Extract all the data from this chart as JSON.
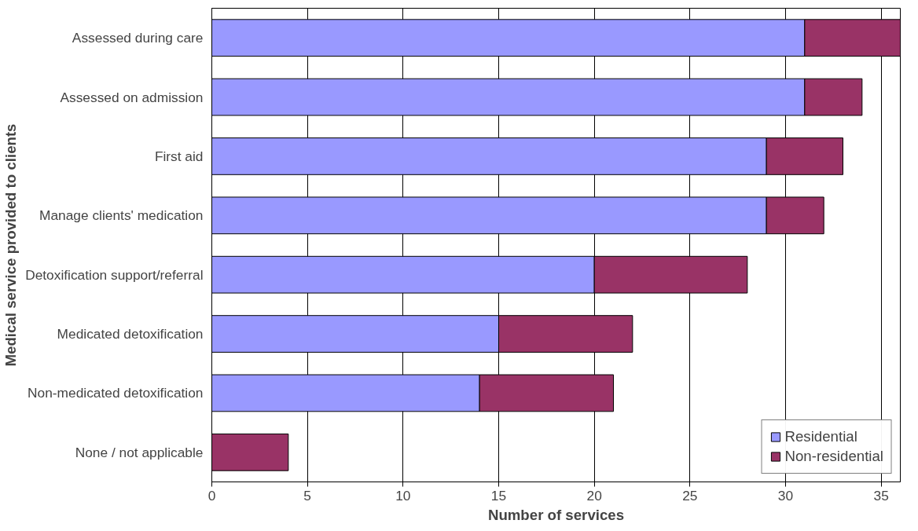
{
  "chart_data": {
    "type": "bar",
    "orientation": "horizontal",
    "stacked": true,
    "xlabel": "Number of services",
    "ylabel": "Medical service provided to clients",
    "categories": [
      "Assessed during care",
      "Assessed on admission",
      "First aid",
      "Manage clients' medication",
      "Detoxification support/referral",
      "Medicated detoxification",
      "Non-medicated detoxification",
      "None / not applicable"
    ],
    "series": [
      {
        "name": "Residential",
        "color": "#9999ff",
        "values": [
          31,
          31,
          29,
          29,
          20,
          15,
          14,
          0
        ]
      },
      {
        "name": "Non-residential",
        "color": "#993366",
        "values": [
          5,
          3,
          4,
          3,
          8,
          7,
          7,
          4
        ]
      }
    ],
    "xlim": [
      0,
      36
    ],
    "xticks": [
      0,
      5,
      10,
      15,
      20,
      25,
      30,
      35
    ],
    "grid": "x",
    "legend": "bottom right"
  }
}
